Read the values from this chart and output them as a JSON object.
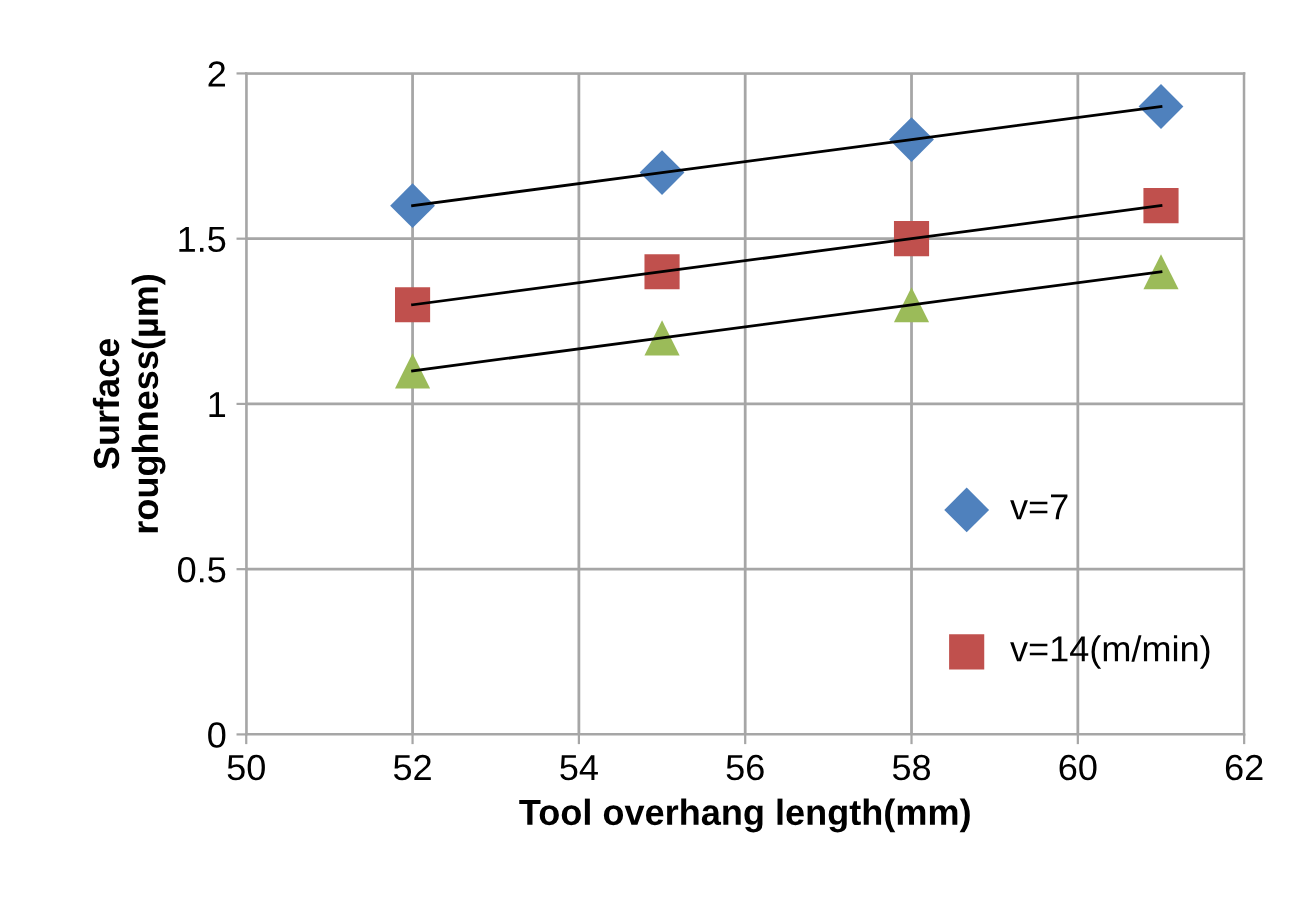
{
  "chart_data": {
    "type": "scatter",
    "xlabel": "Tool overhang length(mm)",
    "ylabel": "Surface\nroughness(µm)",
    "x": [
      52,
      55,
      58,
      61
    ],
    "series": [
      {
        "name": "v=7",
        "color": "#4f81bd",
        "marker": "diamond",
        "values": [
          1.6,
          1.7,
          1.8,
          1.9
        ]
      },
      {
        "name": "v=14(m/min)",
        "color": "#c0504d",
        "marker": "square",
        "values": [
          1.3,
          1.4,
          1.5,
          1.6
        ]
      },
      {
        "color": "#9bbb59",
        "marker": "triangle",
        "values": [
          1.1,
          1.2,
          1.3,
          1.4
        ]
      },
      {
        "type": "line",
        "color": "#000000",
        "marker": "none",
        "values": [
          1.6,
          1.7,
          1.8,
          1.9
        ]
      },
      {
        "type": "line",
        "color": "#000000",
        "marker": "none",
        "values": [
          1.3,
          1.4,
          1.5,
          1.6
        ]
      },
      {
        "type": "line",
        "color": "#000000",
        "marker": "none",
        "values": [
          1.1,
          1.2,
          1.3,
          1.4
        ]
      }
    ],
    "xlim": [
      50,
      62
    ],
    "xticks": [
      50,
      52,
      54,
      56,
      58,
      60,
      62
    ],
    "ylim": [
      0,
      2
    ],
    "yticks": [
      0,
      0.5,
      1,
      1.5,
      2
    ],
    "grid": true,
    "legend": "bottom right"
  }
}
